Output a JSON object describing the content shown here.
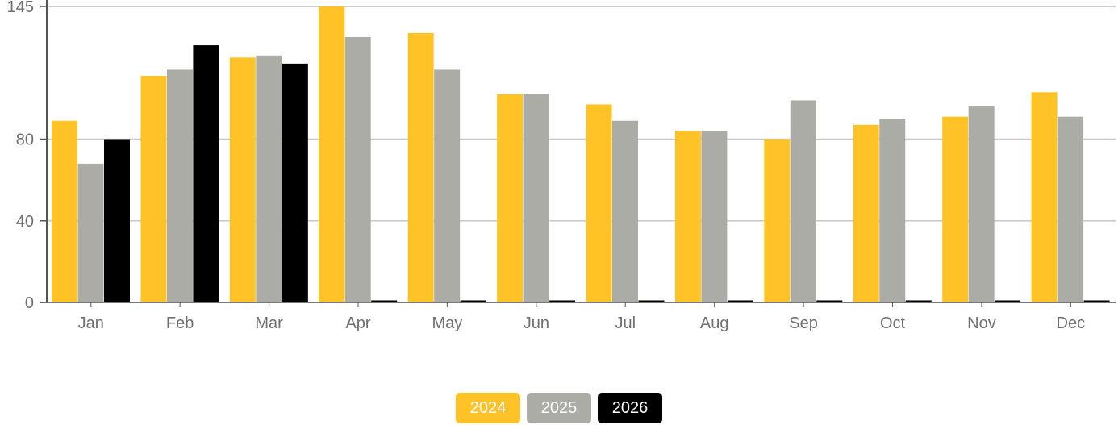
{
  "colors": {
    "2024": "#FFC327",
    "2025": "#ACACA6",
    "2026": "#000000",
    "grid": "#c8c8c8",
    "axis": "#555555"
  },
  "chart_data": {
    "type": "bar",
    "title": "",
    "xlabel": "",
    "ylabel": "",
    "ylim": [
      0,
      145
    ],
    "yticks": [
      0,
      40,
      80,
      145
    ],
    "grid": true,
    "legend_position": "bottom-center",
    "categories": [
      "Jan",
      "Feb",
      "Mar",
      "Apr",
      "May",
      "Jun",
      "Jul",
      "Aug",
      "Sep",
      "Oct",
      "Nov",
      "Dec"
    ],
    "series": [
      {
        "name": "2024",
        "values": [
          89,
          111,
          120,
          145,
          132,
          102,
          97,
          84,
          80,
          87,
          91,
          103
        ]
      },
      {
        "name": "2025",
        "values": [
          68,
          114,
          121,
          130,
          114,
          102,
          89,
          84,
          99,
          90,
          96,
          91
        ]
      },
      {
        "name": "2026",
        "values": [
          80,
          126,
          117,
          1,
          1,
          1,
          1,
          1,
          1,
          1,
          1,
          1
        ]
      }
    ]
  },
  "legend": {
    "items": [
      "2024",
      "2025",
      "2026"
    ]
  }
}
